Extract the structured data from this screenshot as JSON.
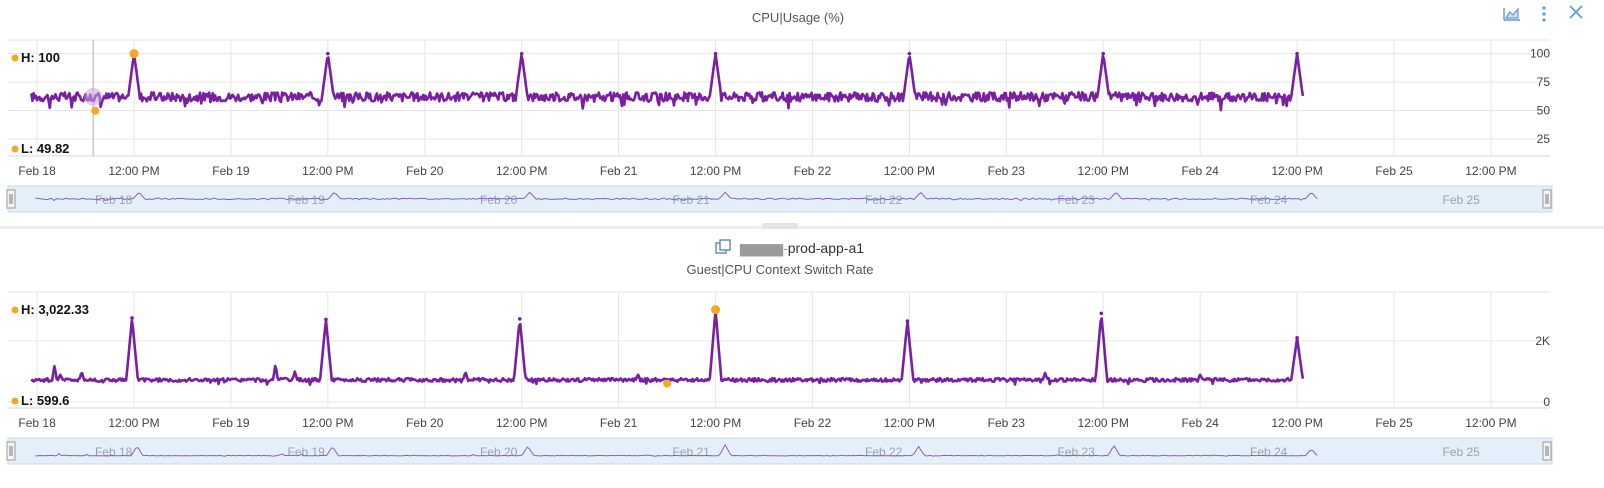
{
  "toolbar": {
    "chart_icon": "area-chart-icon",
    "menu_icon": "more-vertical-icon",
    "close_icon": "close-icon"
  },
  "colors": {
    "series": "#7b1fa2",
    "marker": "#f5a623",
    "navigator_bg": "#e4effa",
    "grid": "#e6e6e6"
  },
  "chart_data": [
    {
      "type": "line",
      "title": "CPU|Usage (%)",
      "high_label": "H: 100",
      "low_label": "L: 49.82",
      "x_tick_labels": [
        "Feb 18",
        "12:00 PM",
        "Feb 19",
        "12:00 PM",
        "Feb 20",
        "12:00 PM",
        "Feb 21",
        "12:00 PM",
        "Feb 22",
        "12:00 PM",
        "Feb 23",
        "12:00 PM",
        "Feb 24",
        "12:00 PM",
        "Feb 25",
        "12:00 PM"
      ],
      "y_tick_labels": [
        "100",
        "75",
        "50",
        "25"
      ],
      "y_ticks": [
        100,
        75,
        50,
        25
      ],
      "ylim": [
        10,
        112
      ],
      "xlim": [
        -0.15,
        7.65
      ],
      "baseline": 62,
      "noise": 4,
      "spikes": [
        {
          "x": 0.5,
          "y": 100
        },
        {
          "x": 1.5,
          "y": 100
        },
        {
          "x": 2.5,
          "y": 100
        },
        {
          "x": 3.5,
          "y": 100
        },
        {
          "x": 4.5,
          "y": 100
        },
        {
          "x": 5.5,
          "y": 100
        },
        {
          "x": 6.5,
          "y": 100
        }
      ],
      "data_end": 6.53,
      "high_point": {
        "x": 0.5,
        "y": 100
      },
      "low_point": {
        "x": 0.3,
        "y": 49.82
      },
      "crosshair_x": 0.29,
      "navigator_labels": [
        "Feb 18",
        "Feb 19",
        "Feb 20",
        "Feb 21",
        "Feb 22",
        "Feb 23",
        "Feb 24",
        "Feb 25"
      ]
    },
    {
      "type": "line",
      "resource_name": "prod-app-a1",
      "resource_icon": "virtual-machine-icon",
      "title": "Guest|CPU Context Switch Rate",
      "high_label": "H: 3,022.33",
      "low_label": "L: 599.6",
      "x_tick_labels": [
        "Feb 18",
        "12:00 PM",
        "Feb 19",
        "12:00 PM",
        "Feb 20",
        "12:00 PM",
        "Feb 21",
        "12:00 PM",
        "Feb 22",
        "12:00 PM",
        "Feb 23",
        "12:00 PM",
        "Feb 24",
        "12:00 PM",
        "Feb 25",
        "12:00 PM"
      ],
      "y_tick_labels": [
        "2K",
        "0"
      ],
      "y_ticks": [
        2000,
        0
      ],
      "ylim": [
        -200,
        3600
      ],
      "xlim": [
        -0.15,
        7.65
      ],
      "baseline": 720,
      "noise": 60,
      "spikes": [
        {
          "x": 0.49,
          "y": 2750
        },
        {
          "x": 1.49,
          "y": 2700
        },
        {
          "x": 2.49,
          "y": 2720
        },
        {
          "x": 3.5,
          "y": 3022.33
        },
        {
          "x": 4.49,
          "y": 2650
        },
        {
          "x": 5.49,
          "y": 2900
        },
        {
          "x": 6.5,
          "y": 2100
        }
      ],
      "small_spikes": [
        {
          "x": 0.09,
          "y": 1200
        },
        {
          "x": 0.12,
          "y": 900
        },
        {
          "x": 0.23,
          "y": 1000
        },
        {
          "x": 1.23,
          "y": 1250
        },
        {
          "x": 1.33,
          "y": 1000
        },
        {
          "x": 2.21,
          "y": 1000
        },
        {
          "x": 3.1,
          "y": 900
        },
        {
          "x": 5.2,
          "y": 950
        },
        {
          "x": 6.0,
          "y": 900
        }
      ],
      "data_end": 6.53,
      "high_point": {
        "x": 3.5,
        "y": 3022.33
      },
      "low_point": {
        "x": 3.25,
        "y": 599.6
      },
      "navigator_labels": [
        "Feb 18",
        "Feb 19",
        "Feb 20",
        "Feb 21",
        "Feb 22",
        "Feb 23",
        "Feb 24",
        "Feb 25"
      ]
    }
  ]
}
